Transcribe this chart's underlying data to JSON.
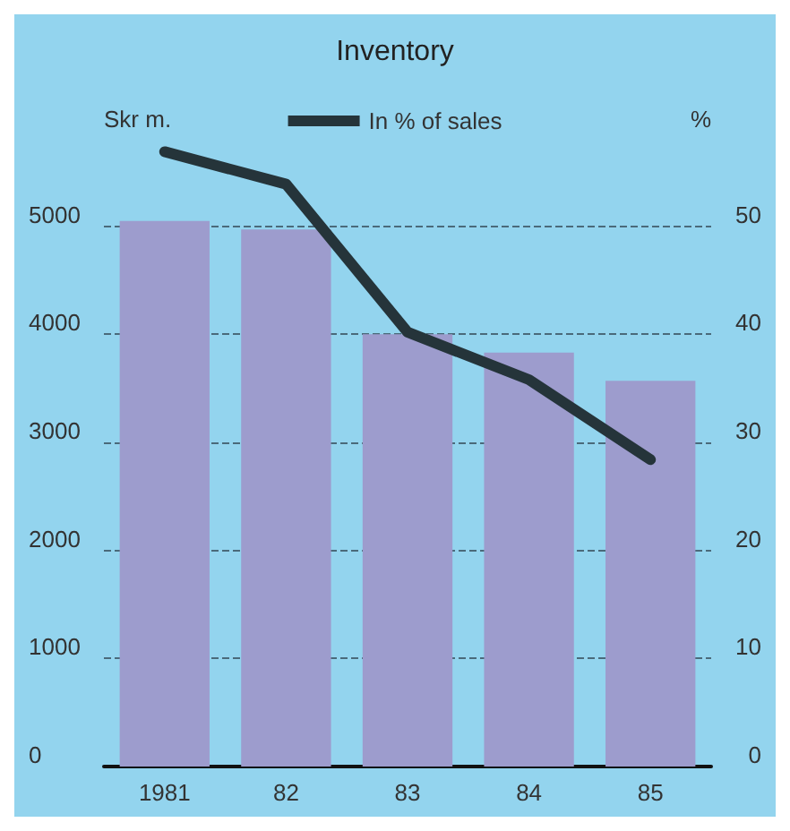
{
  "chart_data": {
    "type": "bar",
    "title": "Inventory",
    "ylabel": "Skr m.",
    "y2label": "%",
    "categories": [
      "1981",
      "82",
      "83",
      "84",
      "85"
    ],
    "series": [
      {
        "color": "#9d9ccd",
        "values": [
          5050,
          4970,
          4000,
          3830,
          3570
        ]
      },
      {
        "type": "line",
        "name": "In % of sales",
        "axis": "y2",
        "color": "#25343a",
        "values": [
          56.9,
          53.9,
          40.2,
          35.8,
          28.4
        ]
      }
    ],
    "ylim": [
      0,
      6000
    ],
    "yticks": [
      0,
      1000,
      2000,
      3000,
      4000,
      5000
    ],
    "y2lim": [
      0,
      60
    ],
    "y2ticks": [
      0,
      10,
      20,
      30,
      40,
      50
    ],
    "grid": "y",
    "legend": "top",
    "marker": "none",
    "line_style": "solid"
  }
}
